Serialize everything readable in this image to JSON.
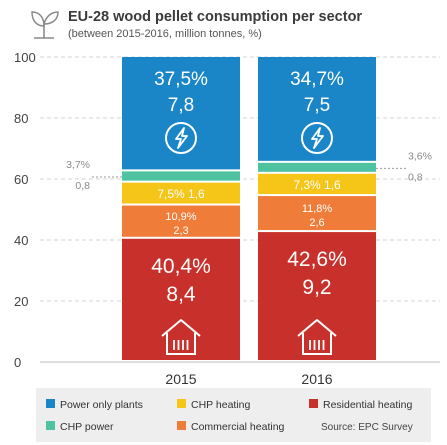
{
  "chart_data": {
    "type": "bar",
    "stacked": true,
    "title": "EU-28 wood pellet consumption per sector",
    "subtitle": "(between 2015-2016, million tonnes, %)",
    "categories": [
      "2015",
      "2016"
    ],
    "ylim": [
      0,
      100
    ],
    "yticks": [
      "0",
      "20",
      "40",
      "60",
      "80",
      "100"
    ],
    "grid": true,
    "legend_position": "bottom",
    "source": "Source: EPC Survey",
    "series": [
      {
        "name": "Residential heating",
        "color": "#c8312b",
        "icon": "house-heating-icon",
        "values": [
          40.4,
          42.6
        ],
        "pct_labels": [
          "40,4%",
          "42,6%"
        ],
        "amount_labels": [
          "8,4",
          "9,2"
        ]
      },
      {
        "name": "Commercial heating",
        "color": "#f07c3a",
        "values": [
          10.9,
          11.8
        ],
        "pct_labels": [
          "10,9%",
          "11,8%"
        ],
        "amount_labels": [
          "2,3",
          "2,6"
        ]
      },
      {
        "name": "CHP heating",
        "color": "#f5c518",
        "values": [
          7.5,
          7.3
        ],
        "pct_labels": [
          "7,5%",
          "7,3%"
        ],
        "amount_labels": [
          "1,6",
          "1,6"
        ]
      },
      {
        "name": "CHP power",
        "color": "#4fc3a1",
        "values": [
          3.7,
          3.6
        ],
        "pct_labels": [
          "3,7%",
          "3,6%"
        ],
        "amount_labels": [
          "0,8",
          "0,8"
        ]
      },
      {
        "name": "Power only plants",
        "color": "#1a86c8",
        "icon": "lightning-icon",
        "values": [
          37.5,
          34.7
        ],
        "pct_labels": [
          "37,5%",
          "34,7%"
        ],
        "amount_labels": [
          "7,8",
          "7,5"
        ]
      }
    ]
  }
}
